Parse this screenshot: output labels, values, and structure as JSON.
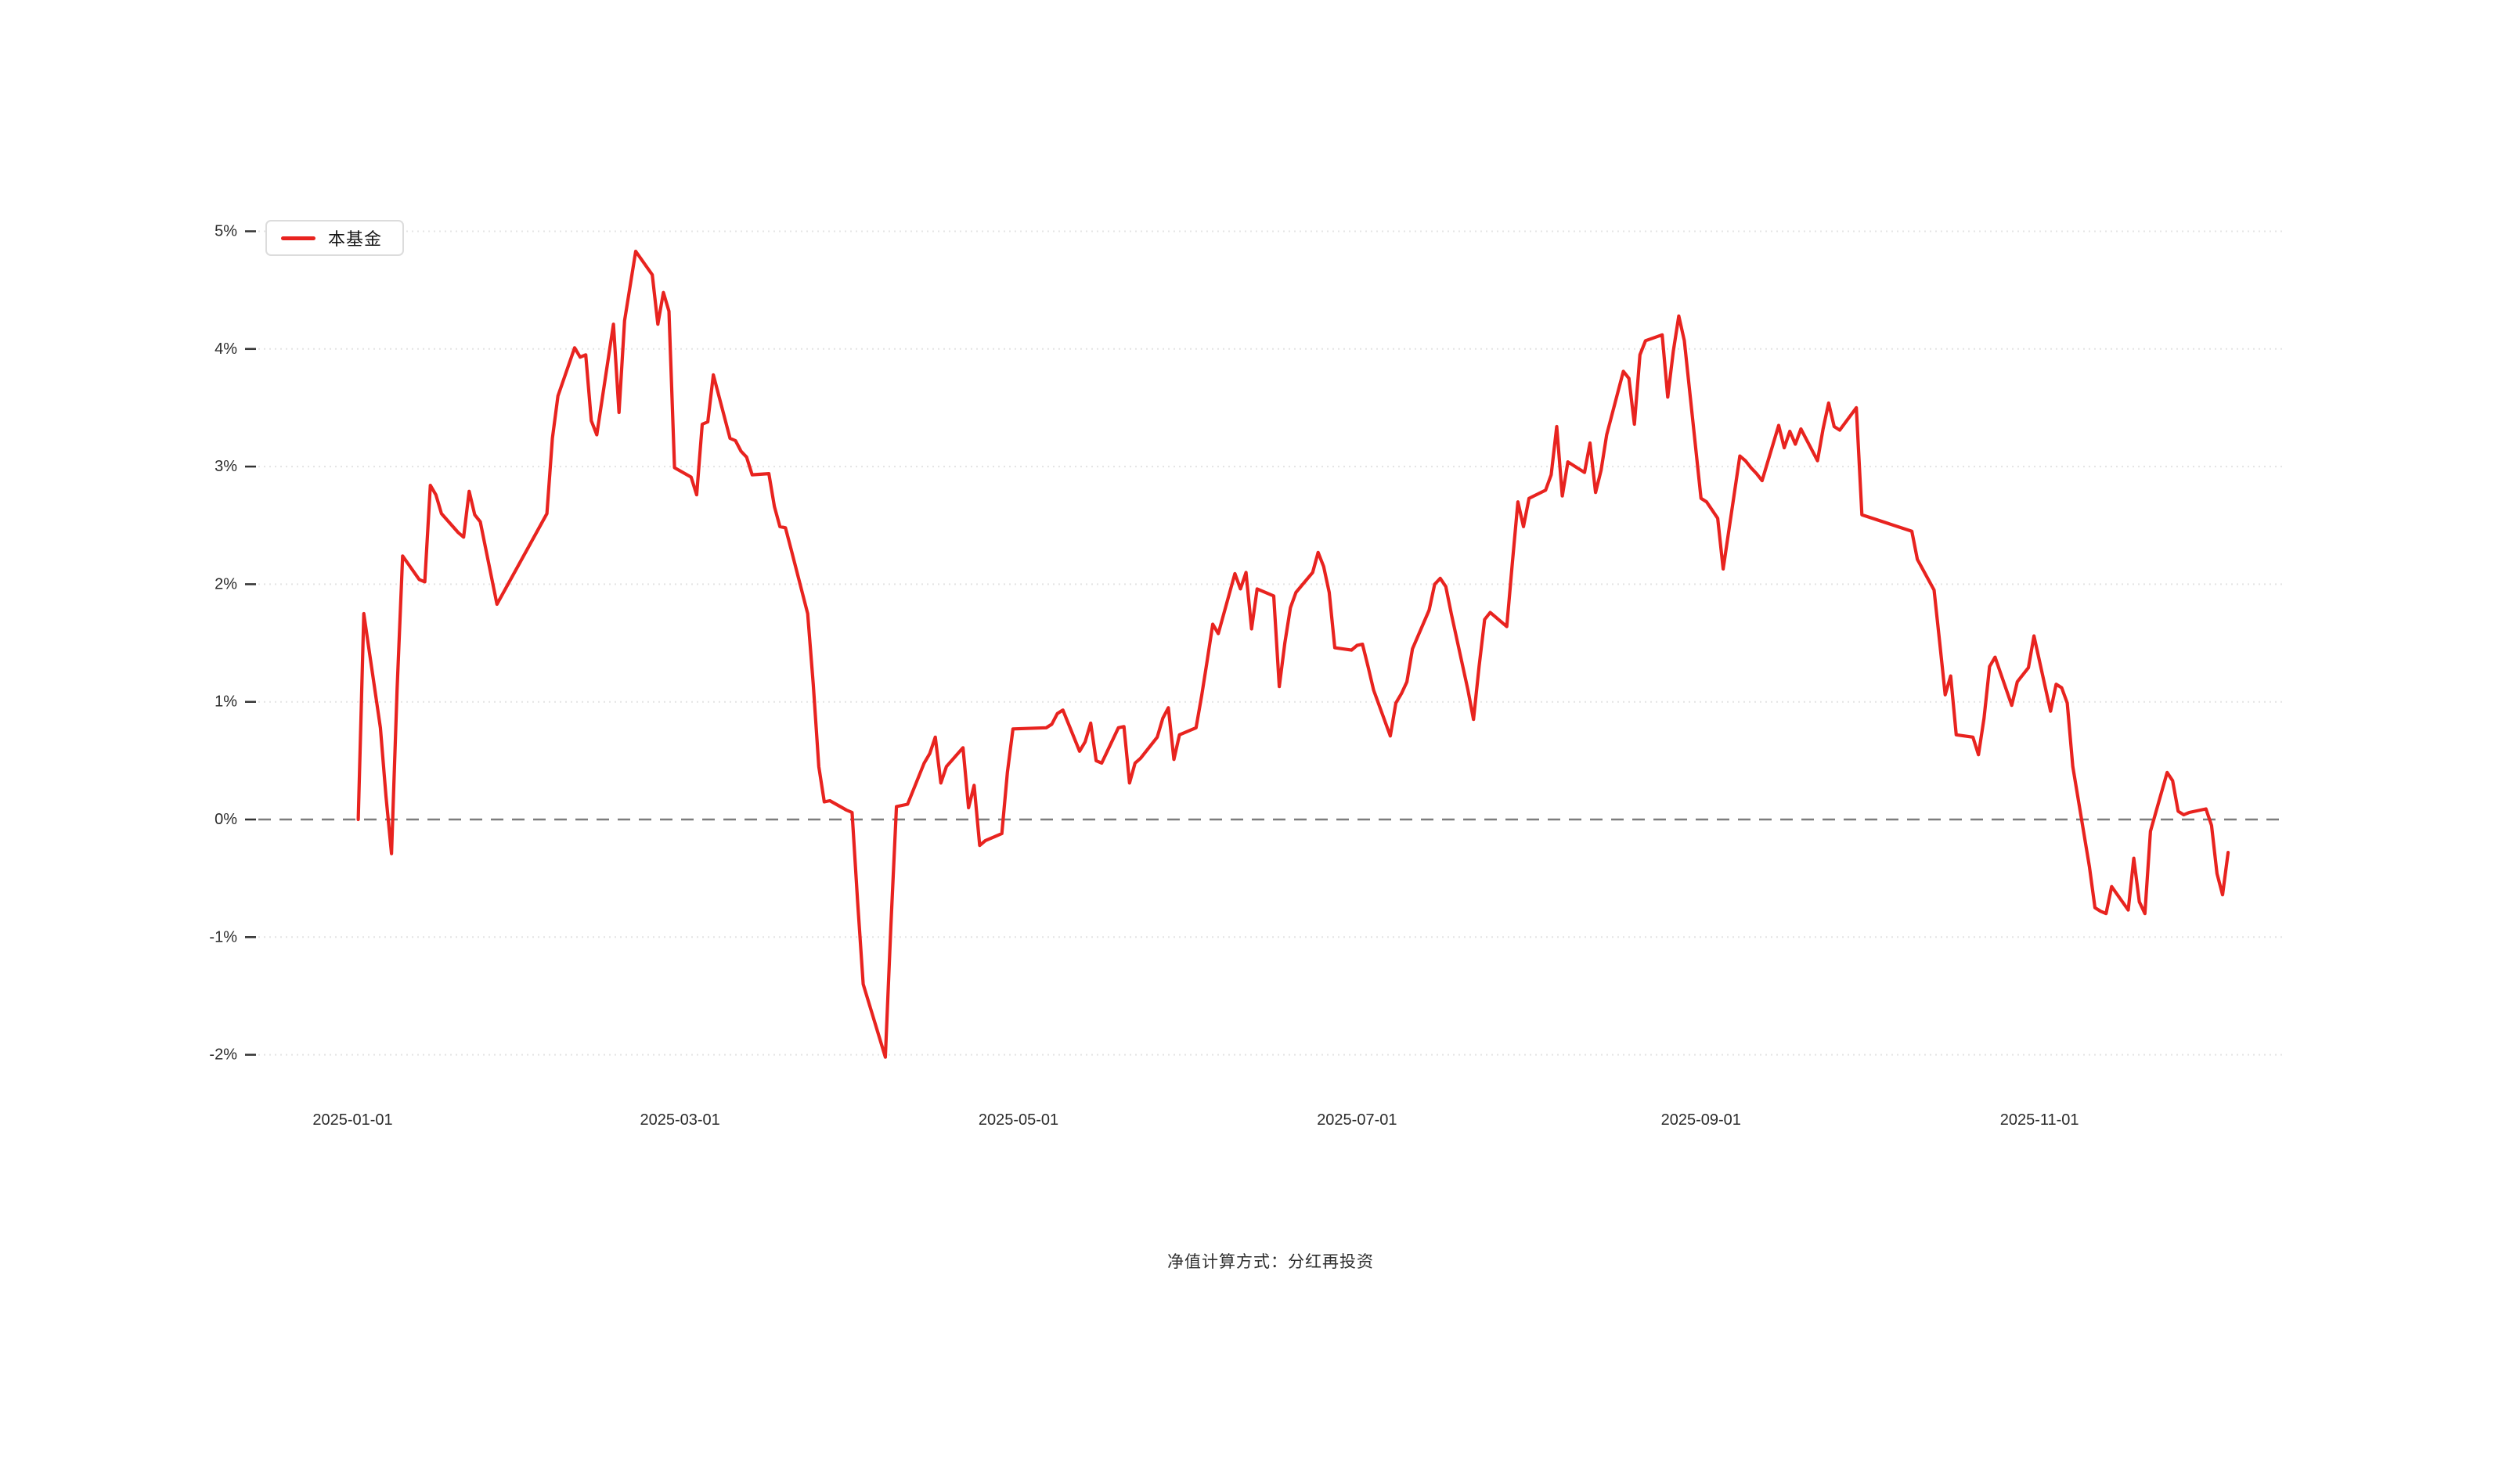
{
  "page": {
    "background": "#ffffff"
  },
  "colors": {
    "series_red": "#e8231f",
    "grid_line": "#e4e4e4",
    "zero_line": "#7d7d7d",
    "axis_text": "#2b2b2b",
    "tick_mark": "#333333",
    "legend_border": "#dcdcdc",
    "caption_text": "#2e2e2e"
  },
  "chart_data": {
    "type": "line",
    "title": "",
    "caption": "净值计算方式：分红再投资",
    "legend_position": "top-left",
    "grid": "horizontal dotted gridlines, dashed zero line, no axis spines",
    "x_axis": {
      "kind": "date",
      "domain_start": "2024-12-15",
      "domain_days": 365,
      "tick_labels": [
        "2025-01-01",
        "2025-03-01",
        "2025-05-01",
        "2025-07-01",
        "2025-09-01",
        "2025-11-01"
      ]
    },
    "y_axis": {
      "unit": "%",
      "tick_values": [
        5,
        4,
        3,
        2,
        1,
        0,
        -1,
        -2
      ],
      "tick_labels": [
        "5%",
        "4%",
        "3%",
        "2%",
        "1%",
        "0%",
        "-1%",
        "-2%"
      ],
      "ylim": [
        -2.35,
        5.3
      ]
    },
    "series": [
      {
        "name": "本基金",
        "color": "#e8231f",
        "points": [
          [
            "2025-01-02",
            0.0
          ],
          [
            "2025-01-03",
            1.75
          ],
          [
            "2025-01-06",
            0.78
          ],
          [
            "2025-01-07",
            0.2
          ],
          [
            "2025-01-08",
            -0.29
          ],
          [
            "2025-01-09",
            1.1
          ],
          [
            "2025-01-10",
            2.24
          ],
          [
            "2025-01-13",
            2.04
          ],
          [
            "2025-01-14",
            2.02
          ],
          [
            "2025-01-15",
            2.84
          ],
          [
            "2025-01-16",
            2.76
          ],
          [
            "2025-01-17",
            2.6
          ],
          [
            "2025-01-20",
            2.44
          ],
          [
            "2025-01-21",
            2.4
          ],
          [
            "2025-01-22",
            2.79
          ],
          [
            "2025-01-23",
            2.59
          ],
          [
            "2025-01-24",
            2.53
          ],
          [
            "2025-01-27",
            1.83
          ],
          [
            "2025-02-05",
            2.6
          ],
          [
            "2025-02-06",
            3.24
          ],
          [
            "2025-02-07",
            3.6
          ],
          [
            "2025-02-10",
            4.01
          ],
          [
            "2025-02-11",
            3.93
          ],
          [
            "2025-02-12",
            3.95
          ],
          [
            "2025-02-13",
            3.39
          ],
          [
            "2025-02-14",
            3.27
          ],
          [
            "2025-02-17",
            4.21
          ],
          [
            "2025-02-18",
            3.46
          ],
          [
            "2025-02-19",
            4.24
          ],
          [
            "2025-02-21",
            4.83
          ],
          [
            "2025-02-24",
            4.63
          ],
          [
            "2025-02-25",
            4.21
          ],
          [
            "2025-02-26",
            4.48
          ],
          [
            "2025-02-27",
            4.32
          ],
          [
            "2025-02-28",
            2.99
          ],
          [
            "2025-03-03",
            2.91
          ],
          [
            "2025-03-04",
            2.76
          ],
          [
            "2025-03-05",
            3.36
          ],
          [
            "2025-03-06",
            3.38
          ],
          [
            "2025-03-07",
            3.78
          ],
          [
            "2025-03-10",
            3.24
          ],
          [
            "2025-03-11",
            3.22
          ],
          [
            "2025-03-12",
            3.13
          ],
          [
            "2025-03-13",
            3.08
          ],
          [
            "2025-03-14",
            2.93
          ],
          [
            "2025-03-17",
            2.94
          ],
          [
            "2025-03-18",
            2.66
          ],
          [
            "2025-03-19",
            2.49
          ],
          [
            "2025-03-20",
            2.48
          ],
          [
            "2025-03-21",
            2.3
          ],
          [
            "2025-03-24",
            1.75
          ],
          [
            "2025-03-25",
            1.15
          ],
          [
            "2025-03-26",
            0.45
          ],
          [
            "2025-03-27",
            0.15
          ],
          [
            "2025-03-28",
            0.16
          ],
          [
            "2025-03-31",
            0.08
          ],
          [
            "2025-04-01",
            0.06
          ],
          [
            "2025-04-02",
            -0.7
          ],
          [
            "2025-04-03",
            -1.4
          ],
          [
            "2025-04-07",
            -2.02
          ],
          [
            "2025-04-08",
            -0.9
          ],
          [
            "2025-04-09",
            0.11
          ],
          [
            "2025-04-10",
            0.12
          ],
          [
            "2025-04-11",
            0.13
          ],
          [
            "2025-04-14",
            0.48
          ],
          [
            "2025-04-15",
            0.56
          ],
          [
            "2025-04-16",
            0.7
          ],
          [
            "2025-04-17",
            0.31
          ],
          [
            "2025-04-18",
            0.45
          ],
          [
            "2025-04-21",
            0.61
          ],
          [
            "2025-04-22",
            0.1
          ],
          [
            "2025-04-23",
            0.29
          ],
          [
            "2025-04-24",
            -0.22
          ],
          [
            "2025-04-25",
            -0.18
          ],
          [
            "2025-04-28",
            -0.12
          ],
          [
            "2025-04-29",
            0.4
          ],
          [
            "2025-04-30",
            0.77
          ],
          [
            "2025-05-06",
            0.78
          ],
          [
            "2025-05-07",
            0.81
          ],
          [
            "2025-05-08",
            0.9
          ],
          [
            "2025-05-09",
            0.93
          ],
          [
            "2025-05-12",
            0.58
          ],
          [
            "2025-05-13",
            0.66
          ],
          [
            "2025-05-14",
            0.82
          ],
          [
            "2025-05-15",
            0.5
          ],
          [
            "2025-05-16",
            0.48
          ],
          [
            "2025-05-19",
            0.78
          ],
          [
            "2025-05-20",
            0.79
          ],
          [
            "2025-05-21",
            0.31
          ],
          [
            "2025-05-22",
            0.48
          ],
          [
            "2025-05-23",
            0.52
          ],
          [
            "2025-05-26",
            0.7
          ],
          [
            "2025-05-27",
            0.86
          ],
          [
            "2025-05-28",
            0.95
          ],
          [
            "2025-05-29",
            0.51
          ],
          [
            "2025-05-30",
            0.72
          ],
          [
            "2025-06-02",
            0.78
          ],
          [
            "2025-06-03",
            1.05
          ],
          [
            "2025-06-04",
            1.35
          ],
          [
            "2025-06-05",
            1.66
          ],
          [
            "2025-06-06",
            1.58
          ],
          [
            "2025-06-09",
            2.09
          ],
          [
            "2025-06-10",
            1.96
          ],
          [
            "2025-06-11",
            2.1
          ],
          [
            "2025-06-12",
            1.62
          ],
          [
            "2025-06-13",
            1.96
          ],
          [
            "2025-06-16",
            1.9
          ],
          [
            "2025-06-17",
            1.13
          ],
          [
            "2025-06-18",
            1.5
          ],
          [
            "2025-06-19",
            1.8
          ],
          [
            "2025-06-20",
            1.93
          ],
          [
            "2025-06-23",
            2.1
          ],
          [
            "2025-06-24",
            2.27
          ],
          [
            "2025-06-25",
            2.15
          ],
          [
            "2025-06-26",
            1.93
          ],
          [
            "2025-06-27",
            1.46
          ],
          [
            "2025-06-30",
            1.44
          ],
          [
            "2025-07-01",
            1.48
          ],
          [
            "2025-07-02",
            1.49
          ],
          [
            "2025-07-03",
            1.3
          ],
          [
            "2025-07-04",
            1.1
          ],
          [
            "2025-07-07",
            0.71
          ],
          [
            "2025-07-08",
            0.99
          ],
          [
            "2025-07-09",
            1.07
          ],
          [
            "2025-07-10",
            1.17
          ],
          [
            "2025-07-11",
            1.45
          ],
          [
            "2025-07-14",
            1.78
          ],
          [
            "2025-07-15",
            2.0
          ],
          [
            "2025-07-16",
            2.05
          ],
          [
            "2025-07-17",
            1.98
          ],
          [
            "2025-07-18",
            1.75
          ],
          [
            "2025-07-21",
            1.1
          ],
          [
            "2025-07-22",
            0.85
          ],
          [
            "2025-07-23",
            1.3
          ],
          [
            "2025-07-24",
            1.7
          ],
          [
            "2025-07-25",
            1.76
          ],
          [
            "2025-07-28",
            1.64
          ],
          [
            "2025-07-29",
            2.18
          ],
          [
            "2025-07-30",
            2.7
          ],
          [
            "2025-07-31",
            2.49
          ],
          [
            "2025-08-01",
            2.73
          ],
          [
            "2025-08-04",
            2.8
          ],
          [
            "2025-08-05",
            2.93
          ],
          [
            "2025-08-06",
            3.34
          ],
          [
            "2025-08-07",
            2.75
          ],
          [
            "2025-08-08",
            3.04
          ],
          [
            "2025-08-11",
            2.95
          ],
          [
            "2025-08-12",
            3.2
          ],
          [
            "2025-08-13",
            2.78
          ],
          [
            "2025-08-14",
            2.97
          ],
          [
            "2025-08-15",
            3.27
          ],
          [
            "2025-08-18",
            3.81
          ],
          [
            "2025-08-19",
            3.75
          ],
          [
            "2025-08-20",
            3.36
          ],
          [
            "2025-08-21",
            3.95
          ],
          [
            "2025-08-22",
            4.07
          ],
          [
            "2025-08-25",
            4.12
          ],
          [
            "2025-08-26",
            3.59
          ],
          [
            "2025-08-27",
            3.98
          ],
          [
            "2025-08-28",
            4.28
          ],
          [
            "2025-08-29",
            4.07
          ],
          [
            "2025-09-01",
            2.73
          ],
          [
            "2025-09-02",
            2.7
          ],
          [
            "2025-09-03",
            2.63
          ],
          [
            "2025-09-04",
            2.56
          ],
          [
            "2025-09-05",
            2.13
          ],
          [
            "2025-09-08",
            3.09
          ],
          [
            "2025-09-09",
            3.05
          ],
          [
            "2025-09-10",
            2.99
          ],
          [
            "2025-09-11",
            2.94
          ],
          [
            "2025-09-12",
            2.88
          ],
          [
            "2025-09-15",
            3.35
          ],
          [
            "2025-09-16",
            3.16
          ],
          [
            "2025-09-17",
            3.3
          ],
          [
            "2025-09-18",
            3.19
          ],
          [
            "2025-09-19",
            3.32
          ],
          [
            "2025-09-22",
            3.05
          ],
          [
            "2025-09-23",
            3.32
          ],
          [
            "2025-09-24",
            3.54
          ],
          [
            "2025-09-25",
            3.34
          ],
          [
            "2025-09-26",
            3.31
          ],
          [
            "2025-09-29",
            3.5
          ],
          [
            "2025-09-30",
            2.59
          ],
          [
            "2025-10-09",
            2.45
          ],
          [
            "2025-10-10",
            2.21
          ],
          [
            "2025-10-13",
            1.95
          ],
          [
            "2025-10-14",
            1.51
          ],
          [
            "2025-10-15",
            1.06
          ],
          [
            "2025-10-16",
            1.22
          ],
          [
            "2025-10-17",
            0.72
          ],
          [
            "2025-10-20",
            0.7
          ],
          [
            "2025-10-21",
            0.55
          ],
          [
            "2025-10-22",
            0.86
          ],
          [
            "2025-10-23",
            1.3
          ],
          [
            "2025-10-24",
            1.38
          ],
          [
            "2025-10-27",
            0.97
          ],
          [
            "2025-10-28",
            1.17
          ],
          [
            "2025-10-29",
            1.23
          ],
          [
            "2025-10-30",
            1.29
          ],
          [
            "2025-10-31",
            1.56
          ],
          [
            "2025-11-03",
            0.92
          ],
          [
            "2025-11-04",
            1.15
          ],
          [
            "2025-11-05",
            1.12
          ],
          [
            "2025-11-06",
            0.99
          ],
          [
            "2025-11-07",
            0.45
          ],
          [
            "2025-11-10",
            -0.4
          ],
          [
            "2025-11-11",
            -0.75
          ],
          [
            "2025-11-12",
            -0.78
          ],
          [
            "2025-11-13",
            -0.8
          ],
          [
            "2025-11-14",
            -0.57
          ],
          [
            "2025-11-17",
            -0.77
          ],
          [
            "2025-11-18",
            -0.33
          ],
          [
            "2025-11-19",
            -0.7
          ],
          [
            "2025-11-20",
            -0.8
          ],
          [
            "2025-11-21",
            -0.1
          ],
          [
            "2025-11-24",
            0.4
          ],
          [
            "2025-11-25",
            0.33
          ],
          [
            "2025-11-26",
            0.07
          ],
          [
            "2025-11-27",
            0.04
          ],
          [
            "2025-11-28",
            0.06
          ],
          [
            "2025-12-01",
            0.09
          ],
          [
            "2025-12-02",
            -0.05
          ],
          [
            "2025-12-03",
            -0.46
          ],
          [
            "2025-12-04",
            -0.64
          ],
          [
            "2025-12-05",
            -0.28
          ]
        ]
      }
    ]
  }
}
